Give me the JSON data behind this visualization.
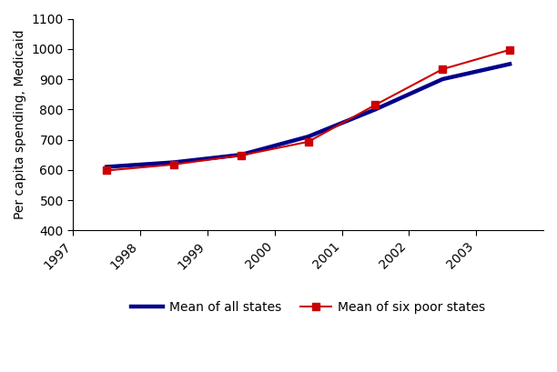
{
  "years": [
    1997,
    1998,
    1999,
    2000,
    2001,
    2002,
    2003
  ],
  "x_positions": [
    1997.5,
    1998.5,
    1999.5,
    2000.5,
    2001.5,
    2002.5,
    2003.5
  ],
  "all_states": [
    610,
    625,
    650,
    710,
    800,
    900,
    950
  ],
  "six_poor_states": [
    598,
    618,
    648,
    693,
    815,
    933,
    997
  ],
  "ylim": [
    400,
    1100
  ],
  "yticks": [
    400,
    500,
    600,
    700,
    800,
    900,
    1000,
    1100
  ],
  "xlim": [
    1997.0,
    2004.0
  ],
  "ylabel": "Per capita spending, Medicaid",
  "all_states_color": "#00008B",
  "six_poor_color": "#CC0000",
  "all_states_label": "Mean of all states",
  "six_poor_label": "Mean of six poor states",
  "all_states_linewidth": 3.2,
  "six_poor_linewidth": 1.5,
  "background_color": "#ffffff",
  "tick_label_fontsize": 10,
  "ylabel_fontsize": 10,
  "legend_fontsize": 10
}
